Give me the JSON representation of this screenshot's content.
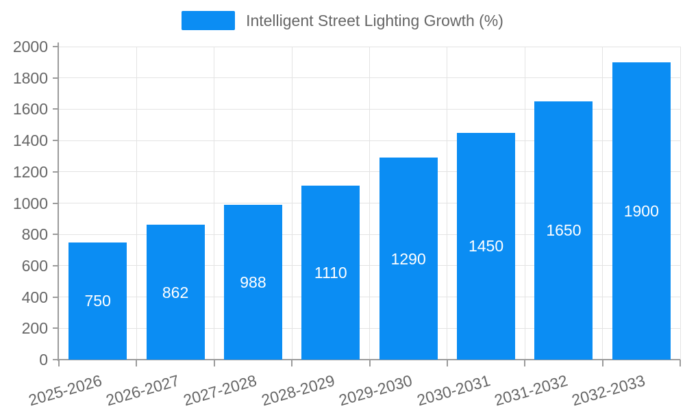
{
  "legend": {
    "label": "Intelligent Street Lighting Growth (%)",
    "position": "top"
  },
  "chart_data": {
    "type": "bar",
    "title": "Intelligent Street Lighting Growth (%)",
    "categories": [
      "2025-2026",
      "2026-2027",
      "2027-2028",
      "2028-2029",
      "2029-2030",
      "2030-2031",
      "2031-2032",
      "2032-2033"
    ],
    "values": [
      750,
      862,
      988,
      1110,
      1290,
      1450,
      1650,
      1900
    ],
    "xlabel": "",
    "ylabel": "",
    "ylim": [
      0,
      2000
    ],
    "ytick_step": 200,
    "grid": true,
    "x_label_rotation_deg": -16,
    "value_labels": "centered-inside-bars",
    "colors": {
      "bar": "#0b8df3",
      "grid": "#e3e3e3",
      "axis": "#9b9b9b",
      "tick_text": "#666666",
      "value_text": "#ffffff",
      "legend_text": "#666666"
    }
  }
}
